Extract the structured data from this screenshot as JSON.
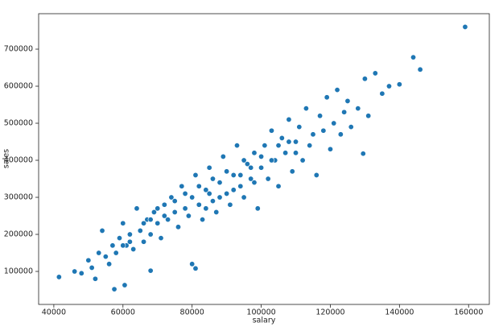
{
  "chart_data": {
    "type": "scatter",
    "x_label": "salary",
    "y_label": "sales",
    "color": "#1f77b4",
    "xlim": [
      35600,
      166000
    ],
    "ylim": [
      10900,
      795700
    ],
    "xticks": [
      40000,
      60000,
      80000,
      100000,
      120000,
      140000,
      160000
    ],
    "yticks": [
      100000,
      200000,
      300000,
      400000,
      500000,
      600000,
      700000
    ],
    "x": [
      159000,
      144000,
      146000,
      41500,
      57500,
      60500,
      129500,
      80000,
      81000,
      68000,
      46000,
      48000,
      50000,
      51000,
      52000,
      53000,
      54000,
      55000,
      56000,
      57000,
      58000,
      59000,
      60000,
      61000,
      62000,
      63000,
      64000,
      65000,
      66000,
      67000,
      68000,
      69000,
      70000,
      71000,
      72000,
      73000,
      74000,
      75000,
      76000,
      77000,
      78000,
      79000,
      80000,
      81000,
      82000,
      83000,
      84000,
      85000,
      86000,
      87000,
      88000,
      89000,
      90000,
      91000,
      92000,
      93000,
      94000,
      95000,
      96000,
      97000,
      98000,
      99000,
      100000,
      101000,
      102000,
      103000,
      104000,
      105000,
      106000,
      107000,
      108000,
      109000,
      110000,
      111000,
      112000,
      113000,
      114000,
      115000,
      116000,
      117000,
      118000,
      119000,
      120000,
      121000,
      122000,
      123000,
      124000,
      125000,
      126000,
      128000,
      130000,
      131000,
      133000,
      135000,
      137000,
      140000,
      75000,
      78000,
      82000,
      85000,
      88000,
      90000,
      92000,
      95000,
      97000,
      100000,
      103000,
      105000,
      108000,
      110000,
      84000,
      86000,
      94000,
      98000,
      70000,
      72000,
      66000,
      68000,
      62000,
      60000
    ],
    "y": [
      760000,
      678000,
      645000,
      85000,
      52000,
      63000,
      418000,
      120000,
      108000,
      102000,
      100000,
      95000,
      130000,
      110000,
      80000,
      150000,
      210000,
      140000,
      120000,
      170000,
      150000,
      190000,
      230000,
      170000,
      200000,
      160000,
      270000,
      210000,
      180000,
      240000,
      200000,
      260000,
      230000,
      190000,
      280000,
      240000,
      300000,
      260000,
      220000,
      330000,
      270000,
      250000,
      300000,
      360000,
      280000,
      240000,
      320000,
      380000,
      290000,
      260000,
      340000,
      410000,
      310000,
      280000,
      360000,
      440000,
      330000,
      300000,
      390000,
      350000,
      420000,
      270000,
      380000,
      440000,
      350000,
      480000,
      400000,
      330000,
      460000,
      420000,
      510000,
      370000,
      450000,
      490000,
      400000,
      540000,
      440000,
      470000,
      360000,
      520000,
      480000,
      570000,
      430000,
      500000,
      590000,
      470000,
      530000,
      560000,
      490000,
      540000,
      620000,
      520000,
      635000,
      580000,
      600000,
      605000,
      290000,
      310000,
      330000,
      310000,
      300000,
      370000,
      320000,
      400000,
      380000,
      410000,
      400000,
      440000,
      450000,
      420000,
      270000,
      350000,
      360000,
      340000,
      270000,
      250000,
      230000,
      240000,
      180000,
      170000
    ]
  }
}
